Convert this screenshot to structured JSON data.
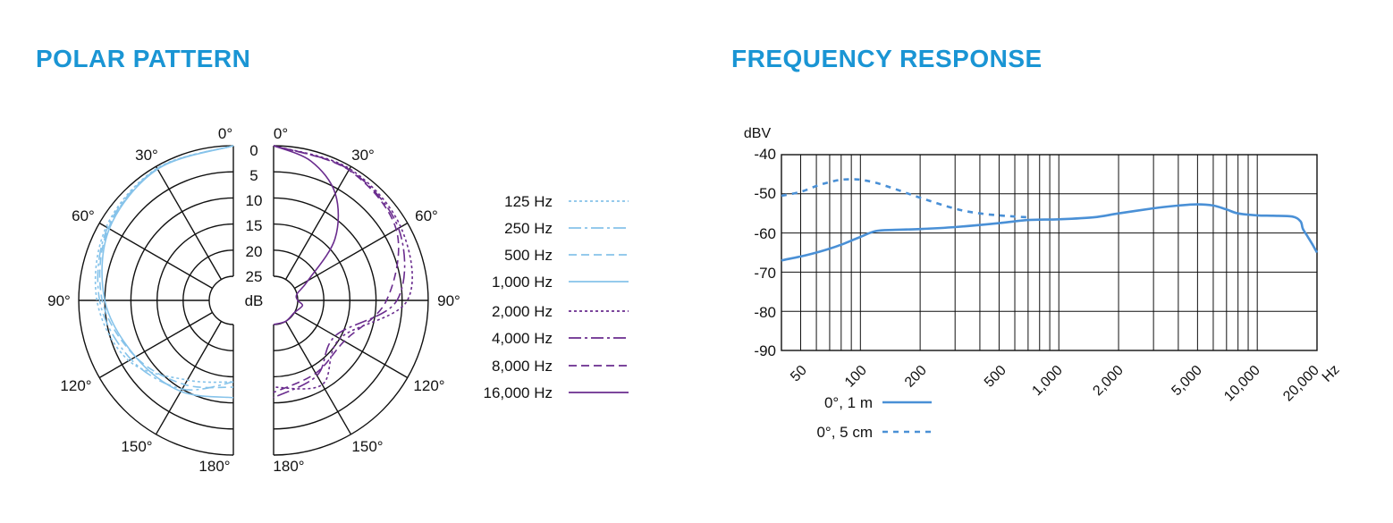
{
  "polar": {
    "title": "POLAR PATTERN",
    "left_labels": {
      "a0": "0°",
      "a30": "30°",
      "a60": "60°",
      "a90": "90°",
      "a120": "120°",
      "a150": "150°",
      "a180": "180°"
    },
    "right_labels": {
      "a0": "0°",
      "a30": "30°",
      "a60": "60°",
      "a90": "90°",
      "a120": "120°",
      "a150": "150°",
      "a180": "180°"
    },
    "db_ticks": [
      "0",
      "5",
      "10",
      "15",
      "20",
      "25"
    ],
    "db_unit": "dB",
    "legend": [
      {
        "label": "125 Hz",
        "color": "#86c3ea",
        "dash": "3,3"
      },
      {
        "label": "250 Hz",
        "color": "#86c3ea",
        "dash": "14,4,3,4"
      },
      {
        "label": "500 Hz",
        "color": "#86c3ea",
        "dash": "9,5"
      },
      {
        "label": "1,000 Hz",
        "color": "#86c3ea",
        "dash": ""
      },
      {
        "label": "2,000 Hz",
        "color": "#6a2c8e",
        "dash": "3,3"
      },
      {
        "label": "4,000 Hz",
        "color": "#6a2c8e",
        "dash": "14,4,3,4"
      },
      {
        "label": "8,000 Hz",
        "color": "#6a2c8e",
        "dash": "9,5"
      },
      {
        "label": "16,000 Hz",
        "color": "#6a2c8e",
        "dash": ""
      }
    ]
  },
  "frequency": {
    "title": "FREQUENCY RESPONSE",
    "yunit": "dBV",
    "xunit": "Hz",
    "y_ticks": [
      "-40",
      "-50",
      "-60",
      "-70",
      "-80",
      "-90"
    ],
    "x_ticks": [
      "50",
      "100",
      "200",
      "500",
      "1,000",
      "2,000",
      "5,000",
      "10,000",
      "20,000"
    ],
    "legend": [
      {
        "label": "0°, 1 m",
        "color": "#4a90d6",
        "dash": ""
      },
      {
        "label": "0°, 5 cm",
        "color": "#4a90d6",
        "dash": "6,6"
      }
    ]
  },
  "chart_data": [
    {
      "type": "line",
      "subtype": "polar",
      "title": "POLAR PATTERN",
      "angle_unit": "degrees",
      "angles": [
        0,
        30,
        60,
        90,
        120,
        150,
        180
      ],
      "radial_unit": "dB",
      "rlim": [
        0,
        25
      ],
      "series": [
        {
          "name": "125 Hz",
          "theta": [
            0,
            30,
            60,
            90,
            120,
            150,
            180
          ],
          "r": [
            0,
            0.4,
            1.5,
            3.5,
            6.5,
            12,
            14
          ]
        },
        {
          "name": "250 Hz",
          "theta": [
            0,
            30,
            60,
            90,
            120,
            150,
            180
          ],
          "r": [
            0,
            0.5,
            1.8,
            4,
            7,
            10,
            14
          ]
        },
        {
          "name": "500 Hz",
          "theta": [
            0,
            30,
            60,
            90,
            120,
            150,
            180
          ],
          "r": [
            0,
            0.5,
            2,
            4.5,
            8,
            11,
            13
          ]
        },
        {
          "name": "1,000 Hz",
          "theta": [
            0,
            30,
            60,
            90,
            120,
            150,
            180
          ],
          "r": [
            0,
            0.6,
            2.2,
            5,
            8,
            9.5,
            11
          ]
        },
        {
          "name": "2,000 Hz",
          "theta": [
            0,
            30,
            60,
            90,
            120,
            150,
            180
          ],
          "r": [
            0,
            0.5,
            1.5,
            4,
            15,
            11,
            13
          ]
        },
        {
          "name": "4,000 Hz",
          "theta": [
            0,
            30,
            60,
            90,
            120,
            150,
            180
          ],
          "r": [
            0,
            0.7,
            2,
            6,
            16,
            13,
            11
          ]
        },
        {
          "name": "8,000 Hz",
          "theta": [
            0,
            30,
            60,
            90,
            120,
            150,
            180
          ],
          "r": [
            0,
            0.8,
            2.5,
            8,
            14,
            13.5,
            12
          ]
        },
        {
          "name": "16,000 Hz",
          "theta": [
            0,
            15,
            30,
            45,
            60,
            75,
            90,
            100,
            120,
            150,
            180
          ],
          "r": [
            0,
            2,
            6,
            13,
            22,
            25,
            25,
            24,
            25,
            25,
            25
          ]
        }
      ]
    },
    {
      "type": "line",
      "title": "FREQUENCY RESPONSE",
      "xlabel": "Hz",
      "ylabel": "dBV",
      "xscale": "log",
      "xlim": [
        40,
        20000
      ],
      "ylim": [
        -90,
        -40
      ],
      "x_ticks": [
        50,
        100,
        200,
        500,
        1000,
        2000,
        5000,
        10000,
        20000
      ],
      "y_ticks": [
        -40,
        -50,
        -60,
        -70,
        -80,
        -90
      ],
      "grid": true,
      "series": [
        {
          "name": "0°, 1 m",
          "x": [
            40,
            50,
            60,
            70,
            80,
            100,
            120,
            150,
            200,
            300,
            500,
            700,
            1000,
            1500,
            2000,
            3000,
            4000,
            5000,
            6000,
            7000,
            8000,
            10000,
            12000,
            15000,
            16500,
            17000,
            18000,
            19000,
            20000
          ],
          "y": [
            -67,
            -66,
            -65,
            -64,
            -63,
            -61,
            -59.5,
            -59.2,
            -59,
            -58.5,
            -57.5,
            -56.7,
            -56.5,
            -56,
            -55,
            -53.7,
            -53,
            -52.7,
            -53,
            -54,
            -55,
            -55.5,
            -55.6,
            -55.8,
            -57,
            -59,
            -61,
            -63,
            -65
          ]
        },
        {
          "name": "0°, 5 cm",
          "x": [
            40,
            50,
            60,
            70,
            80,
            90,
            100,
            120,
            150,
            200,
            300,
            400,
            500,
            600,
            700
          ],
          "y": [
            -50.5,
            -49.5,
            -48,
            -47,
            -46.4,
            -46.3,
            -46.4,
            -47.2,
            -48.8,
            -51,
            -53.8,
            -55,
            -55.5,
            -55.8,
            -56
          ]
        }
      ]
    }
  ]
}
